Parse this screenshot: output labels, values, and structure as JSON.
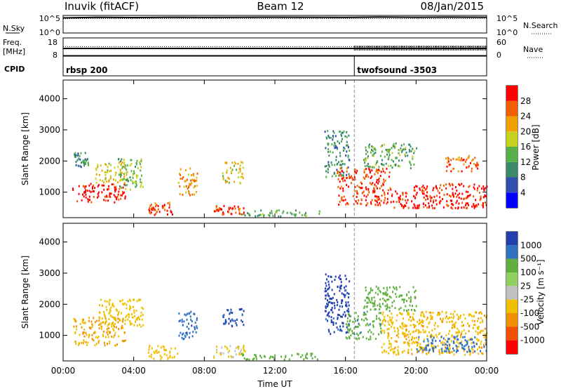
{
  "header": {
    "station": "Inuvik (fitACF)",
    "beam": "Beam 12",
    "date": "08/Jan/2015"
  },
  "colors": {
    "power_scale": [
      "#0000ff",
      "#2f4fb0",
      "#3a8a6a",
      "#58b048",
      "#c8d020",
      "#f0a000",
      "#f06000",
      "#ff0000"
    ],
    "velocity_scale": [
      "#2040b0",
      "#3070c0",
      "#60b040",
      "#90d060",
      "#c0c0c0",
      "#f0c000",
      "#f09000",
      "#f05000",
      "#ff0000"
    ]
  },
  "chart_data": [
    {
      "type": "line",
      "panel": "noise",
      "left_label": "N.Sky",
      "right_label": "N.Search",
      "ylim": [
        1,
        100000
      ],
      "scale": "log",
      "left_ticks": [
        "10^5",
        "10^0"
      ],
      "right_ticks": [
        "10^5",
        "10^0"
      ],
      "x": [
        0,
        2,
        4,
        6,
        8,
        10,
        12,
        14,
        16,
        18,
        20,
        22,
        24
      ],
      "series": [
        {
          "values": [
            20000,
            30000,
            25000,
            30000,
            28000,
            30000,
            32000,
            30000,
            28000,
            35000,
            30000,
            33000,
            30000
          ]
        },
        {
          "values": [
            12000,
            13000,
            12500,
            13000,
            12800,
            13200,
            13000,
            12700,
            12900,
            13100,
            12800,
            13000,
            12900
          ]
        }
      ]
    },
    {
      "type": "line",
      "panel": "frequency / averages",
      "left_label": "Freq.",
      "left_unit": "[MHz]",
      "right_label": "Nave",
      "left_ticks": [
        "18",
        "8"
      ],
      "right_ticks": [
        "60",
        "0"
      ],
      "freq_ylim": [
        8,
        18
      ],
      "nave_ylim": [
        0,
        60
      ],
      "x": [
        0,
        2,
        4,
        6,
        8,
        10,
        12,
        14,
        16,
        16.5,
        18,
        20,
        22,
        24
      ],
      "series": [
        {
          "values": [
            12,
            12,
            12,
            12,
            12,
            12,
            12,
            12,
            12,
            12,
            12,
            12,
            12,
            12
          ]
        },
        {
          "values": [
            30,
            30,
            30,
            30,
            30,
            30,
            30,
            30,
            30,
            30,
            30,
            30,
            30,
            30
          ]
        }
      ]
    },
    {
      "type": "table",
      "panel": "CPID",
      "label": "CPID",
      "entries": [
        {
          "start_hour": 0,
          "text": "rbsp 200"
        },
        {
          "start_hour": 16.5,
          "text": "twofsound -3503"
        }
      ]
    },
    {
      "type": "heatmap",
      "panel": "power",
      "ylabel": "Slant Range [km]",
      "yticks": [
        1000,
        2000,
        3000,
        4000
      ],
      "ylim": [
        180,
        4600
      ],
      "xlim": [
        0,
        24
      ],
      "colorbar_label": "Power [dB]",
      "colorbar_ticks": [
        "4",
        "8",
        "12",
        "16",
        "20",
        "24",
        "28"
      ],
      "colorbar_range": [
        0,
        30
      ],
      "regions": [
        {
          "x": [
            0.5,
            3.5
          ],
          "y": [
            700,
            1300
          ],
          "value": 28
        },
        {
          "x": [
            0.6,
            1.4
          ],
          "y": [
            1800,
            2300
          ],
          "value": 10
        },
        {
          "x": [
            1.8,
            3.6
          ],
          "y": [
            1300,
            2000
          ],
          "value": 18
        },
        {
          "x": [
            3.1,
            4.5
          ],
          "y": [
            1100,
            2100
          ],
          "value": 14
        },
        {
          "x": [
            4.8,
            6.2
          ],
          "y": [
            300,
            700
          ],
          "value": 26
        },
        {
          "x": [
            6.5,
            7.6
          ],
          "y": [
            900,
            1800
          ],
          "value": 22
        },
        {
          "x": [
            8.5,
            10.3
          ],
          "y": [
            300,
            600
          ],
          "value": 26
        },
        {
          "x": [
            9.0,
            10.2
          ],
          "y": [
            1300,
            2000
          ],
          "value": 18
        },
        {
          "x": [
            10.0,
            14.5
          ],
          "y": [
            250,
            450
          ],
          "value": 12
        },
        {
          "x": [
            14.8,
            16.2
          ],
          "y": [
            1500,
            3000
          ],
          "value": 10
        },
        {
          "x": [
            15.5,
            18.5
          ],
          "y": [
            600,
            1800
          ],
          "value": 26
        },
        {
          "x": [
            18.5,
            24.0
          ],
          "y": [
            500,
            1300
          ],
          "value": 28
        },
        {
          "x": [
            17.0,
            20.0
          ],
          "y": [
            1800,
            2600
          ],
          "value": 12
        },
        {
          "x": [
            21.5,
            23.5
          ],
          "y": [
            1700,
            2200
          ],
          "value": 24
        }
      ]
    },
    {
      "type": "heatmap",
      "panel": "velocity",
      "ylabel": "Slant Range [km]",
      "xlabel": "Time UT",
      "xticks": [
        "00:00",
        "04:00",
        "08:00",
        "12:00",
        "16:00",
        "20:00",
        "00:00"
      ],
      "yticks": [
        1000,
        2000,
        3000,
        4000
      ],
      "ylim": [
        180,
        4600
      ],
      "xlim": [
        0,
        24
      ],
      "colorbar_label": "Velocity [m s⁻¹]",
      "colorbar_ticks": [
        "1000",
        "500",
        "100",
        "25",
        "-25",
        "-100",
        "-500",
        "-1000"
      ],
      "regions": [
        {
          "x": [
            0.5,
            3.5
          ],
          "y": [
            700,
            1600
          ],
          "value": -300
        },
        {
          "x": [
            2.0,
            4.5
          ],
          "y": [
            1300,
            2200
          ],
          "value": -200
        },
        {
          "x": [
            4.8,
            6.5
          ],
          "y": [
            250,
            700
          ],
          "value": -150
        },
        {
          "x": [
            6.5,
            7.6
          ],
          "y": [
            900,
            1800
          ],
          "value": 400
        },
        {
          "x": [
            8.5,
            10.3
          ],
          "y": [
            300,
            700
          ],
          "value": -100
        },
        {
          "x": [
            9.0,
            10.2
          ],
          "y": [
            1300,
            1900
          ],
          "value": 500
        },
        {
          "x": [
            10.0,
            14.5
          ],
          "y": [
            250,
            450
          ],
          "value": 60
        },
        {
          "x": [
            14.8,
            16.2
          ],
          "y": [
            1000,
            3000
          ],
          "value": 700
        },
        {
          "x": [
            16.0,
            18.0
          ],
          "y": [
            900,
            1800
          ],
          "value": 80
        },
        {
          "x": [
            18.0,
            24.0
          ],
          "y": [
            400,
            1800
          ],
          "value": -250
        },
        {
          "x": [
            17.0,
            20.0
          ],
          "y": [
            1800,
            2600
          ],
          "value": 50
        },
        {
          "x": [
            20.0,
            24.0
          ],
          "y": [
            500,
            1000
          ],
          "value": 300
        }
      ]
    }
  ]
}
